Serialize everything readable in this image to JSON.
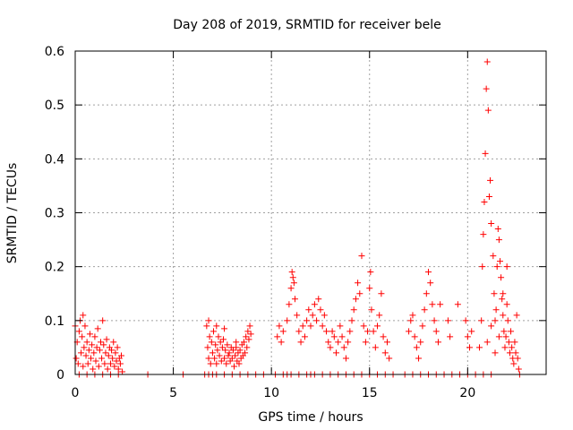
{
  "chart_data": {
    "type": "scatter",
    "title": "Day 208 of 2019, SRMTID for receiver bele",
    "xlabel": "GPS time / hours",
    "ylabel": "SRMTID / TECUs",
    "xlim": [
      0,
      24
    ],
    "ylim": [
      0,
      0.6
    ],
    "xticks": [
      0,
      5,
      10,
      15,
      20
    ],
    "yticks": [
      0,
      0.1,
      0.2,
      0.3,
      0.4,
      0.5,
      0.6
    ],
    "xtick_labels": [
      "0",
      "5",
      "10",
      "15",
      "20"
    ],
    "ytick_labels": [
      "0",
      "0.1",
      "0.2",
      "0.3",
      "0.4",
      "0.5",
      "0.6"
    ],
    "grid": true,
    "marker": "+",
    "series": [
      {
        "name": "SRMTID",
        "color": "#ff0000",
        "points": [
          [
            0.05,
            0.03
          ],
          [
            0.1,
            0.06
          ],
          [
            0.15,
            0.02
          ],
          [
            0.2,
            0.08
          ],
          [
            0.25,
            0.1
          ],
          [
            0.3,
            0.04
          ],
          [
            0.35,
            0.07
          ],
          [
            0.4,
            0.015
          ],
          [
            0.45,
            0.05
          ],
          [
            0.5,
            0.09
          ],
          [
            0.55,
            0.035
          ],
          [
            0.6,
            0.06
          ],
          [
            0.65,
            0.02
          ],
          [
            0.7,
            0.045
          ],
          [
            0.75,
            0.075
          ],
          [
            0.8,
            0.03
          ],
          [
            0.85,
            0.055
          ],
          [
            0.9,
            0.01
          ],
          [
            0.95,
            0.04
          ],
          [
            1.0,
            0.07
          ],
          [
            1.05,
            0.025
          ],
          [
            1.1,
            0.05
          ],
          [
            1.15,
            0.085
          ],
          [
            1.2,
            0.015
          ],
          [
            1.25,
            0.045
          ],
          [
            1.3,
            0.06
          ],
          [
            1.35,
            0.03
          ],
          [
            1.4,
            0.1
          ],
          [
            1.45,
            0.055
          ],
          [
            1.5,
            0.02
          ],
          [
            1.55,
            0.04
          ],
          [
            1.6,
            0.065
          ],
          [
            1.65,
            0.01
          ],
          [
            1.7,
            0.035
          ],
          [
            1.75,
            0.05
          ],
          [
            1.8,
            0.02
          ],
          [
            1.85,
            0.045
          ],
          [
            1.9,
            0.03
          ],
          [
            1.95,
            0.06
          ],
          [
            2.0,
            0.015
          ],
          [
            2.05,
            0.04
          ],
          [
            2.1,
            0.025
          ],
          [
            2.15,
            0.05
          ],
          [
            2.2,
            0.01
          ],
          [
            2.25,
            0.03
          ],
          [
            2.3,
            0.02
          ],
          [
            2.35,
            0.035
          ],
          [
            2.4,
            0.005
          ],
          [
            0.0,
            0.09
          ],
          [
            0.4,
            0.11
          ],
          [
            0.2,
            0.0
          ],
          [
            0.6,
            0.0
          ],
          [
            1.0,
            0.0
          ],
          [
            1.4,
            0.0
          ],
          [
            1.8,
            0.0
          ],
          [
            2.2,
            0.0
          ],
          [
            3.7,
            0.0
          ],
          [
            5.5,
            0.0
          ],
          [
            6.6,
            0.0
          ],
          [
            6.8,
            0.0
          ],
          [
            7.0,
            0.0
          ],
          [
            7.2,
            0.0
          ],
          [
            7.6,
            0.0
          ],
          [
            8.0,
            0.0
          ],
          [
            8.4,
            0.0
          ],
          [
            8.8,
            0.0
          ],
          [
            9.2,
            0.0
          ],
          [
            9.6,
            0.0
          ],
          [
            6.7,
            0.09
          ],
          [
            6.75,
            0.05
          ],
          [
            6.8,
            0.03
          ],
          [
            6.85,
            0.07
          ],
          [
            6.9,
            0.02
          ],
          [
            6.95,
            0.06
          ],
          [
            7.0,
            0.04
          ],
          [
            7.05,
            0.08
          ],
          [
            7.1,
            0.03
          ],
          [
            7.15,
            0.055
          ],
          [
            7.2,
            0.02
          ],
          [
            7.25,
            0.045
          ],
          [
            7.3,
            0.07
          ],
          [
            7.35,
            0.035
          ],
          [
            7.4,
            0.06
          ],
          [
            7.45,
            0.025
          ],
          [
            7.5,
            0.05
          ],
          [
            7.55,
            0.065
          ],
          [
            7.6,
            0.03
          ],
          [
            7.65,
            0.045
          ],
          [
            7.7,
            0.02
          ],
          [
            7.75,
            0.055
          ],
          [
            7.8,
            0.035
          ],
          [
            7.85,
            0.04
          ],
          [
            7.9,
            0.025
          ],
          [
            7.95,
            0.05
          ],
          [
            8.0,
            0.03
          ],
          [
            8.05,
            0.045
          ],
          [
            8.1,
            0.015
          ],
          [
            8.15,
            0.035
          ],
          [
            8.2,
            0.05
          ],
          [
            8.25,
            0.025
          ],
          [
            8.3,
            0.04
          ],
          [
            8.35,
            0.02
          ],
          [
            8.4,
            0.045
          ],
          [
            8.45,
            0.03
          ],
          [
            8.5,
            0.055
          ],
          [
            8.55,
            0.035
          ],
          [
            8.6,
            0.06
          ],
          [
            8.65,
            0.04
          ],
          [
            8.7,
            0.07
          ],
          [
            8.75,
            0.05
          ],
          [
            8.8,
            0.08
          ],
          [
            8.85,
            0.065
          ],
          [
            8.9,
            0.09
          ],
          [
            8.95,
            0.075
          ],
          [
            6.8,
            0.1
          ],
          [
            7.2,
            0.09
          ],
          [
            7.6,
            0.085
          ],
          [
            8.2,
            0.06
          ],
          [
            10.2,
            0.0
          ],
          [
            10.6,
            0.0
          ],
          [
            10.8,
            0.0
          ],
          [
            11.0,
            0.0
          ],
          [
            11.4,
            0.0
          ],
          [
            11.8,
            0.0
          ],
          [
            12.0,
            0.0
          ],
          [
            12.2,
            0.0
          ],
          [
            12.6,
            0.0
          ],
          [
            13.0,
            0.0
          ],
          [
            13.4,
            0.0
          ],
          [
            13.8,
            0.0
          ],
          [
            14.2,
            0.0
          ],
          [
            14.6,
            0.0
          ],
          [
            15.0,
            0.0
          ],
          [
            15.4,
            0.0
          ],
          [
            15.8,
            0.0
          ],
          [
            16.2,
            0.0
          ],
          [
            16.8,
            0.0
          ],
          [
            17.2,
            0.0
          ],
          [
            17.6,
            0.0
          ],
          [
            18.0,
            0.0
          ],
          [
            18.4,
            0.0
          ],
          [
            18.8,
            0.0
          ],
          [
            19.2,
            0.0
          ],
          [
            19.6,
            0.0
          ],
          [
            20.0,
            0.0
          ],
          [
            20.4,
            0.0
          ],
          [
            20.8,
            0.0
          ],
          [
            21.2,
            0.0
          ],
          [
            10.3,
            0.07
          ],
          [
            10.4,
            0.09
          ],
          [
            10.5,
            0.06
          ],
          [
            10.6,
            0.08
          ],
          [
            10.8,
            0.1
          ],
          [
            10.9,
            0.13
          ],
          [
            11.0,
            0.16
          ],
          [
            11.05,
            0.19
          ],
          [
            11.1,
            0.18
          ],
          [
            11.15,
            0.17
          ],
          [
            11.2,
            0.14
          ],
          [
            11.3,
            0.11
          ],
          [
            11.4,
            0.08
          ],
          [
            11.5,
            0.06
          ],
          [
            11.6,
            0.09
          ],
          [
            11.7,
            0.07
          ],
          [
            11.8,
            0.1
          ],
          [
            11.9,
            0.12
          ],
          [
            12.0,
            0.09
          ],
          [
            12.1,
            0.11
          ],
          [
            12.2,
            0.13
          ],
          [
            12.3,
            0.1
          ],
          [
            12.4,
            0.14
          ],
          [
            12.5,
            0.12
          ],
          [
            12.6,
            0.09
          ],
          [
            12.7,
            0.11
          ],
          [
            12.8,
            0.08
          ],
          [
            12.9,
            0.06
          ],
          [
            13.0,
            0.05
          ],
          [
            13.1,
            0.08
          ],
          [
            13.2,
            0.07
          ],
          [
            13.3,
            0.04
          ],
          [
            13.4,
            0.06
          ],
          [
            13.5,
            0.09
          ],
          [
            13.6,
            0.07
          ],
          [
            13.7,
            0.05
          ],
          [
            13.8,
            0.03
          ],
          [
            13.9,
            0.06
          ],
          [
            14.0,
            0.08
          ],
          [
            14.1,
            0.1
          ],
          [
            14.2,
            0.12
          ],
          [
            14.3,
            0.14
          ],
          [
            14.4,
            0.17
          ],
          [
            14.5,
            0.15
          ],
          [
            14.6,
            0.22
          ],
          [
            14.7,
            0.09
          ],
          [
            14.8,
            0.06
          ],
          [
            14.9,
            0.08
          ],
          [
            15.0,
            0.16
          ],
          [
            15.05,
            0.19
          ],
          [
            15.1,
            0.12
          ],
          [
            15.2,
            0.08
          ],
          [
            15.3,
            0.05
          ],
          [
            15.4,
            0.09
          ],
          [
            15.5,
            0.11
          ],
          [
            15.6,
            0.15
          ],
          [
            15.7,
            0.07
          ],
          [
            15.8,
            0.04
          ],
          [
            15.9,
            0.06
          ],
          [
            16.0,
            0.03
          ],
          [
            17.0,
            0.08
          ],
          [
            17.1,
            0.1
          ],
          [
            17.2,
            0.11
          ],
          [
            17.3,
            0.07
          ],
          [
            17.4,
            0.05
          ],
          [
            17.5,
            0.03
          ],
          [
            17.6,
            0.06
          ],
          [
            17.7,
            0.09
          ],
          [
            17.8,
            0.12
          ],
          [
            17.9,
            0.15
          ],
          [
            18.0,
            0.19
          ],
          [
            18.1,
            0.17
          ],
          [
            18.2,
            0.13
          ],
          [
            18.3,
            0.1
          ],
          [
            18.4,
            0.08
          ],
          [
            18.5,
            0.06
          ],
          [
            18.6,
            0.13
          ],
          [
            19.0,
            0.1
          ],
          [
            19.1,
            0.07
          ],
          [
            19.5,
            0.13
          ],
          [
            19.9,
            0.1
          ],
          [
            20.0,
            0.07
          ],
          [
            20.1,
            0.05
          ],
          [
            20.2,
            0.08
          ],
          [
            20.6,
            0.05
          ],
          [
            20.7,
            0.1
          ],
          [
            20.75,
            0.2
          ],
          [
            20.8,
            0.26
          ],
          [
            20.85,
            0.32
          ],
          [
            20.9,
            0.41
          ],
          [
            20.95,
            0.53
          ],
          [
            21.0,
            0.58
          ],
          [
            21.05,
            0.49
          ],
          [
            21.1,
            0.33
          ],
          [
            21.15,
            0.36
          ],
          [
            21.2,
            0.28
          ],
          [
            21.3,
            0.22
          ],
          [
            21.35,
            0.15
          ],
          [
            21.4,
            0.1
          ],
          [
            21.45,
            0.12
          ],
          [
            21.5,
            0.2
          ],
          [
            21.55,
            0.27
          ],
          [
            21.6,
            0.25
          ],
          [
            21.65,
            0.21
          ],
          [
            21.7,
            0.18
          ],
          [
            21.75,
            0.14
          ],
          [
            21.8,
            0.11
          ],
          [
            21.85,
            0.08
          ],
          [
            21.9,
            0.05
          ],
          [
            21.95,
            0.07
          ],
          [
            22.0,
            0.13
          ],
          [
            22.05,
            0.1
          ],
          [
            22.1,
            0.06
          ],
          [
            22.15,
            0.04
          ],
          [
            22.2,
            0.08
          ],
          [
            22.25,
            0.05
          ],
          [
            22.3,
            0.03
          ],
          [
            22.35,
            0.02
          ],
          [
            22.4,
            0.06
          ],
          [
            22.45,
            0.04
          ],
          [
            22.5,
            0.11
          ],
          [
            22.55,
            0.03
          ],
          [
            22.6,
            0.01
          ],
          [
            22.65,
            0.0
          ],
          [
            21.0,
            0.06
          ],
          [
            21.2,
            0.09
          ],
          [
            21.4,
            0.04
          ],
          [
            21.6,
            0.07
          ],
          [
            21.8,
            0.15
          ],
          [
            22.0,
            0.2
          ]
        ]
      }
    ]
  }
}
